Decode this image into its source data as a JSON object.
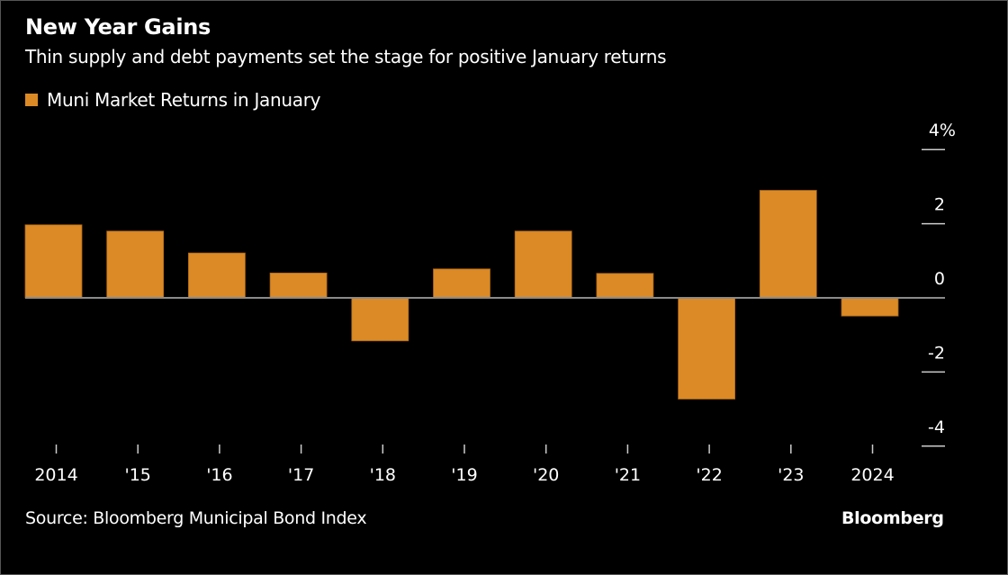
{
  "chart_data": {
    "type": "bar",
    "title": "New Year Gains",
    "subtitle": "Thin supply and debt payments set the stage for positive January returns",
    "categories": [
      "2014",
      "'15",
      "'16",
      "'17",
      "'18",
      "'19",
      "'20",
      "'21",
      "'22",
      "'23",
      "2024"
    ],
    "series": [
      {
        "name": "Muni Market Returns in January",
        "color": "#dc8a25",
        "values": [
          1.97,
          1.8,
          1.21,
          0.67,
          -1.16,
          0.78,
          1.8,
          0.66,
          -2.73,
          2.9,
          -0.49
        ]
      }
    ],
    "ylim": [
      -4,
      4
    ],
    "yticks": [
      4,
      2,
      0,
      -2,
      -4
    ],
    "ytick_labels": [
      "4%",
      "2",
      "0",
      "-2",
      "-4"
    ],
    "yaxis_position": "right",
    "grid": false,
    "legend": "top-left",
    "source": "Source: Bloomberg Municipal Bond Index",
    "brand": "Bloomberg"
  }
}
